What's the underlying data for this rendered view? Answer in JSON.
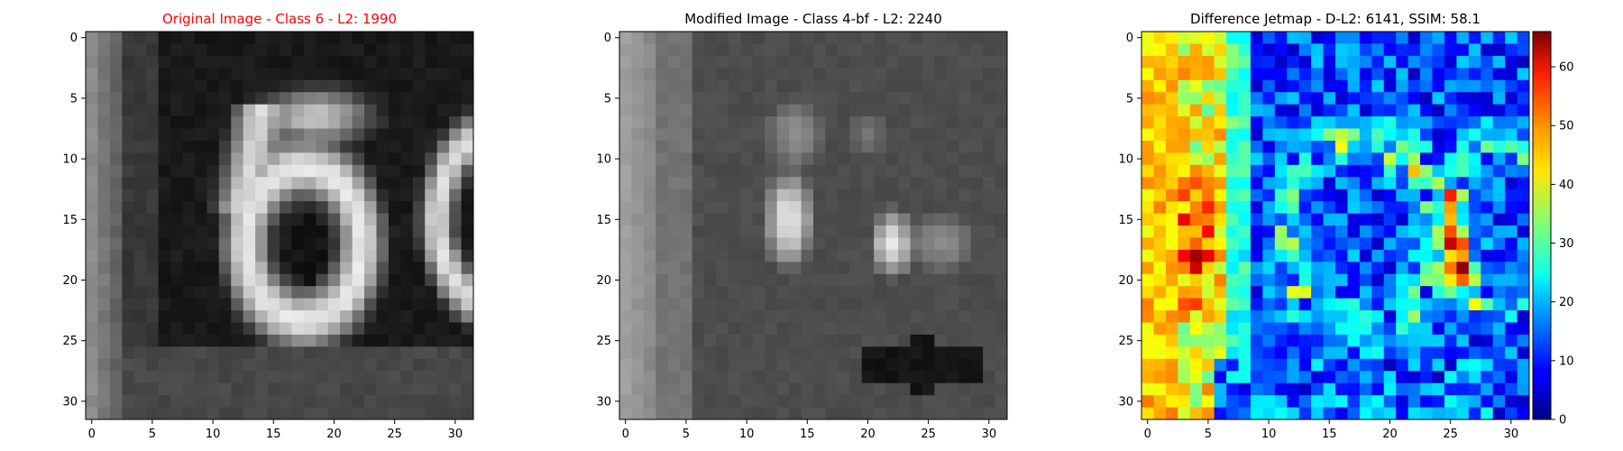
{
  "chart_data": [
    {
      "type": "heatmap",
      "title": "Original Image - Class 6 - L2: 1990",
      "title_color": "#ff0000",
      "colormap": "gray",
      "image_size": [
        32,
        32
      ],
      "xlim": [
        -0.5,
        31.5
      ],
      "ylim": [
        31.5,
        -0.5
      ],
      "xticks": [
        0,
        5,
        10,
        15,
        20,
        25,
        30
      ],
      "yticks": [
        0,
        5,
        10,
        15,
        20,
        25,
        30
      ],
      "content": "grayscale photo of house number digits '6' and partial '6' on dark background"
    },
    {
      "type": "heatmap",
      "title": "Modified Image - Class 4-bf - L2: 2240",
      "title_color": "#000000",
      "colormap": "gray",
      "image_size": [
        32,
        32
      ],
      "xlim": [
        -0.5,
        31.5
      ],
      "ylim": [
        31.5,
        -0.5
      ],
      "xticks": [
        0,
        5,
        10,
        15,
        20,
        25,
        30
      ],
      "yticks": [
        0,
        5,
        10,
        15,
        20,
        25,
        30
      ],
      "content": "blurred grayscale image with two bright vertical blobs"
    },
    {
      "type": "heatmap",
      "title": "Difference Jetmap - D-L2: 6141, SSIM: 58.1",
      "title_color": "#000000",
      "colormap": "jet",
      "image_size": [
        32,
        32
      ],
      "xlim": [
        -0.5,
        31.5
      ],
      "ylim": [
        31.5,
        -0.5
      ],
      "xticks": [
        0,
        5,
        10,
        15,
        20,
        25,
        30
      ],
      "yticks": [
        0,
        5,
        10,
        15,
        20,
        25,
        30
      ],
      "colorbar": {
        "min": 0,
        "max": 66,
        "ticks": [
          0,
          10,
          20,
          30,
          40,
          50,
          60
        ]
      },
      "content": "per-pixel absolute difference between original and modified images"
    }
  ]
}
